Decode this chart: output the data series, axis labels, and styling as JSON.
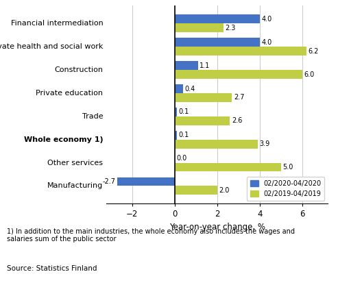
{
  "categories": [
    "Manufacturing",
    "Other services",
    "Whole economy 1)",
    "Trade",
    "Private education",
    "Construction",
    "Private health and social work",
    "Financial intermediation"
  ],
  "series": {
    "02/2020-04/2020": [
      -2.7,
      0.0,
      0.1,
      0.1,
      0.4,
      1.1,
      4.0,
      4.0
    ],
    "02/2019-04/2019": [
      2.0,
      5.0,
      3.9,
      2.6,
      2.7,
      6.0,
      6.2,
      2.3
    ]
  },
  "colors": {
    "02/2020-04/2020": "#4472c4",
    "02/2019-04/2019": "#bfce44"
  },
  "xlim": [
    -3.2,
    7.2
  ],
  "xticks": [
    -2,
    0,
    2,
    4,
    6
  ],
  "xlabel": "Year-on-year change, %",
  "footnote1": "1) In addition to the main industries, the whole economy also includes the wages and\nsalaries sum of the public sector",
  "footnote2": "Source: Statistics Finland",
  "bar_height": 0.38,
  "background_color": "#ffffff",
  "grid_color": "#cccccc",
  "bold_categories": [
    "Whole economy 1)"
  ]
}
